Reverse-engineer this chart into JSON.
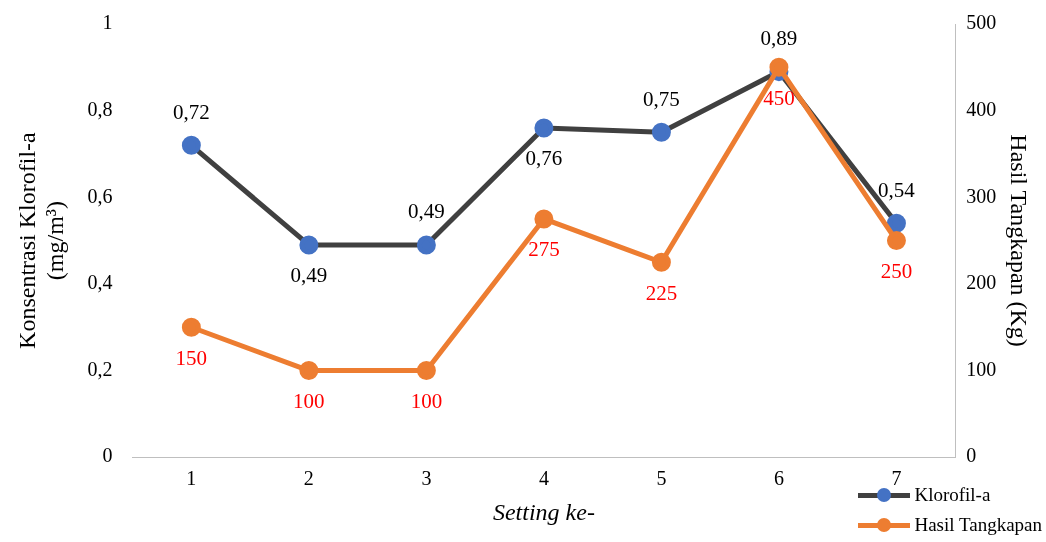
{
  "chart_data": {
    "type": "line",
    "xlabel": "Setting ke-",
    "ylabel": "Konsentrasi Klorofil-a (mg/m³)",
    "y2label": "Hasil Tangkapan (Kg)",
    "categories": [
      "1",
      "2",
      "3",
      "4",
      "5",
      "6",
      "7"
    ],
    "series": [
      {
        "name": "Klorofil-a",
        "color": "#404040",
        "colors": [
          "#4472c4",
          "#4472c4",
          "#4472c4",
          "#4472c4",
          "#4472c4",
          "#4472c4",
          "#4472c4"
        ],
        "values": [
          0.72,
          0.49,
          0.49,
          0.76,
          0.75,
          0.89,
          0.54
        ],
        "value_labels": [
          "0,72",
          "0,49",
          "0,49",
          "0,76",
          "0,75",
          "0,89",
          "0,54"
        ]
      },
      {
        "name": "Hasil Tangkapan",
        "color": "#ed7d31",
        "axis": "y2",
        "values": [
          150,
          100,
          100,
          275,
          225,
          450,
          250
        ],
        "value_labels": [
          "150",
          "100",
          "100",
          "275",
          "225",
          "450",
          "250"
        ]
      }
    ],
    "ylim": [
      0,
      1
    ],
    "yticks": [
      {
        "value": 0,
        "label": "0"
      },
      {
        "value": 0.2,
        "label": "0,2"
      },
      {
        "value": 0.4,
        "label": "0,4"
      },
      {
        "value": 0.6,
        "label": "0,6"
      },
      {
        "value": 0.8,
        "label": "0,8"
      },
      {
        "value": 1,
        "label": "1"
      }
    ],
    "y2lim": [
      0,
      500
    ],
    "y2ticks": [
      0,
      100,
      200,
      300,
      400,
      500
    ],
    "grid": false,
    "legend": "bottom right",
    "marker": "circle",
    "line_style": "solid"
  }
}
